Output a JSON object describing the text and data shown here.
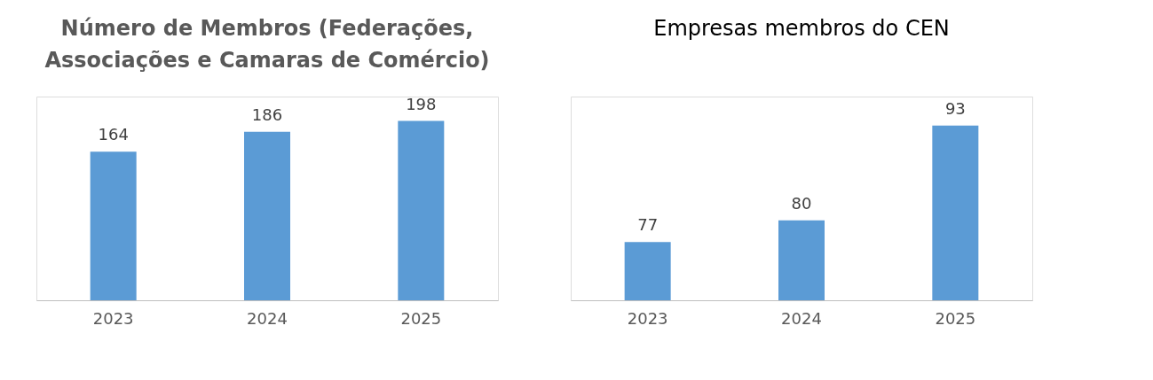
{
  "chart_data": [
    {
      "type": "bar",
      "title": "Número de Membros (Federações, Associações e Camaras de Comércio)",
      "categories": [
        "2023",
        "2024",
        "2025"
      ],
      "values": [
        164,
        186,
        198
      ],
      "color": "#5b9bd5",
      "ylim": [
        0,
        225
      ],
      "data_labels": true,
      "tick_labels": "x",
      "grid": false
    },
    {
      "type": "bar",
      "title": "Empresas membros do CEN",
      "categories": [
        "2023",
        "2024",
        "2025"
      ],
      "values": [
        77,
        80,
        93
      ],
      "color": "#5b9bd5",
      "ylim": [
        69,
        97
      ],
      "data_labels": true,
      "tick_labels": "x",
      "grid": false
    }
  ]
}
